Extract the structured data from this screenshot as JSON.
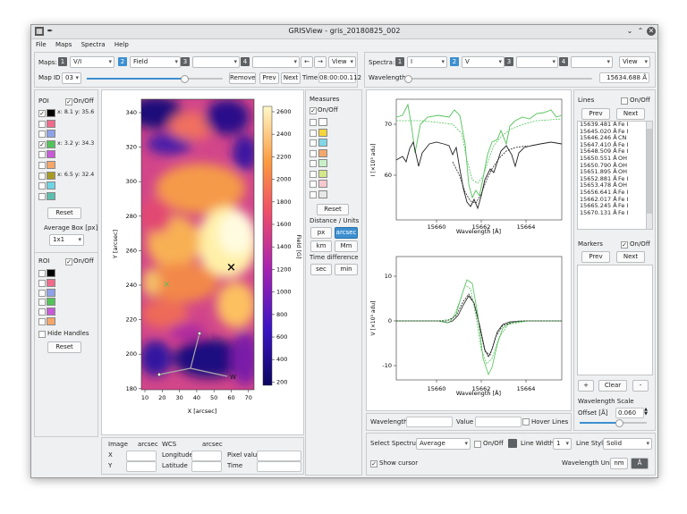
{
  "window": {
    "title": "GRISView - gris_20180825_002"
  },
  "menu": [
    "File",
    "Maps",
    "Spectra",
    "Help"
  ],
  "maps_bar": {
    "label": "Maps:",
    "slot1_num": "1",
    "slot1_value": "V/I",
    "slot2_num": "2",
    "slot2_value": "Field",
    "slot3_num": "3",
    "slot4_num": "4",
    "left_arrow": "←",
    "right_arrow": "→",
    "view_label": "View",
    "mapid_label": "Map ID",
    "mapid_value": "03",
    "mapid_slider_fraction": 0.72,
    "remove": "Remove",
    "prev": "Prev",
    "next": "Next",
    "time_label": "Time",
    "time_value": "08:00:00.112"
  },
  "spectra_bar": {
    "label": "Spectra:",
    "slot1_num": "1",
    "slot1_value": "I",
    "slot2_num": "2",
    "slot2_value": "V",
    "slot3_num": "3",
    "slot4_num": "4",
    "view_label": "View",
    "wavelength_label": "Wavelength",
    "wavelength_value": "15634.688 Å",
    "wavelength_slider_fraction": 0.0
  },
  "poi": {
    "title": "POI",
    "onoff": "On/Off",
    "items": [
      {
        "checked": true,
        "color": "#000000",
        "text": "x: 8.1  y: 35.6"
      },
      {
        "checked": false,
        "color": "#f06b8b",
        "text": ""
      },
      {
        "checked": false,
        "color": "#8fa2e8",
        "text": ""
      },
      {
        "checked": true,
        "color": "#53c25a",
        "text": "x: 3.2  y: 34.3"
      },
      {
        "checked": false,
        "color": "#c75ad6",
        "text": ""
      },
      {
        "checked": false,
        "color": "#f4a66b",
        "text": ""
      },
      {
        "checked": false,
        "color": "#a79b25",
        "text": "x: 6.5  y: 32.4"
      },
      {
        "checked": false,
        "color": "#6fd3e5",
        "text": ""
      },
      {
        "checked": false,
        "color": "#5dbfae",
        "text": ""
      }
    ],
    "reset": "Reset",
    "avg_box_label": "Average Box [px]",
    "avg_box_value": "1x1"
  },
  "roi": {
    "title": "ROI",
    "onoff": "On/Off",
    "colors": [
      "#000000",
      "#f06b8b",
      "#8fa2e8",
      "#53c25a",
      "#c75ad6",
      "#f4a66b"
    ],
    "hide_handles": "Hide Handles",
    "reset": "Reset"
  },
  "map": {
    "xlabel": "X [arcsec]",
    "ylabel": "Y [arcsec]",
    "xticks": [
      "10",
      "20",
      "30",
      "40",
      "50",
      "60",
      "70"
    ],
    "yticks": [
      "340",
      "320",
      "300",
      "280",
      "260",
      "240",
      "220",
      "200",
      "180"
    ],
    "cbar_label": "Field [G]",
    "cbar_ticks": [
      "2600",
      "2400",
      "2200",
      "2000",
      "1800",
      "1600",
      "1400",
      "1200",
      "1000",
      "800",
      "600",
      "400",
      "200"
    ],
    "roi_label": "W",
    "colors": {
      "low": "#1a0a8a",
      "mid": "#d63a8a",
      "high": "#fff0a0"
    }
  },
  "measures": {
    "title": "Measures",
    "onoff": "On/Off",
    "swatches": [
      "#ffffff",
      "#f5d63a",
      "#80d6e8",
      "#f4a66b",
      "#c8f0c8",
      "#d4e88a",
      "#f8c8d0",
      "#e8e8e8"
    ],
    "reset": "Reset",
    "units_title": "Distance / Units",
    "px": "px",
    "arcsec": "arcsec",
    "km": "km",
    "mm": "Mm",
    "time_diff": "Time difference",
    "sec": "sec",
    "min": "min"
  },
  "coords": {
    "image_label": "Image",
    "image_unit": "arcsec",
    "wcs_label": "WCS",
    "wcs_unit": "arcsec",
    "x": "X",
    "y": "Y",
    "longitude": "Longitude",
    "latitude": "Latitude",
    "pixel_value": "Pixel value",
    "time": "Time"
  },
  "plot_top": {
    "ylabel": "I [×10³ adu]",
    "xlabel": "Wavelength [Å]",
    "xticks": [
      "15660",
      "15662",
      "15664"
    ],
    "yticks": [
      "70",
      "60"
    ]
  },
  "plot_bottom": {
    "ylabel": "V [×10³ adu]",
    "xlabel": "Wavelength [Å]",
    "xticks": [
      "15660",
      "15662",
      "15664"
    ],
    "yticks": [
      "10",
      "0",
      "-10"
    ]
  },
  "bottom_bar": {
    "wavelength": "Wavelength",
    "value": "Value",
    "hover": "Hover Lines",
    "select_spectrum": "Select Spectrum",
    "spectrum_value": "Average",
    "onoff": "On/Off",
    "line_width": "Line Width",
    "line_width_value": "1",
    "line_style": "Line Style",
    "line_style_value": "Solid",
    "show_cursor": "Show cursor",
    "wl_units": "Wavelength Units",
    "nm": "nm",
    "angstrom": "Å"
  },
  "lines": {
    "title": "Lines",
    "onoff": "On/Off",
    "prev": "Prev",
    "next": "Next",
    "items": [
      {
        "wl": "15639.481 Å",
        "el": "Fe I"
      },
      {
        "wl": "15645.020 Å",
        "el": "Fe I"
      },
      {
        "wl": "15646.246 Å",
        "el": "CN"
      },
      {
        "wl": "15647.410 Å",
        "el": "Fe I"
      },
      {
        "wl": "15648.509 Å",
        "el": "Fe I"
      },
      {
        "wl": "15650.551 Å",
        "el": "OH"
      },
      {
        "wl": "15650.790 Å",
        "el": "OH"
      },
      {
        "wl": "15651.895 Å",
        "el": "OH"
      },
      {
        "wl": "15652.881 Å",
        "el": "Fe I"
      },
      {
        "wl": "15653.478 Å",
        "el": "OH"
      },
      {
        "wl": "15656.641 Å",
        "el": "Fe I"
      },
      {
        "wl": "15662.017 Å",
        "el": "Fe I"
      },
      {
        "wl": "15665.245 Å",
        "el": "Fe I"
      },
      {
        "wl": "15670.131 Å",
        "el": "Fe I"
      }
    ]
  },
  "markers": {
    "title": "Markers",
    "onoff": "On/Off",
    "prev": "Prev",
    "next": "Next",
    "plus": "+",
    "clear": "Clear",
    "minus": "-"
  },
  "wl_scale": {
    "title": "Wavelength Scale",
    "offset_label": "Offset [Å]",
    "offset_value": "0.060",
    "slider_fraction": 0.58
  }
}
